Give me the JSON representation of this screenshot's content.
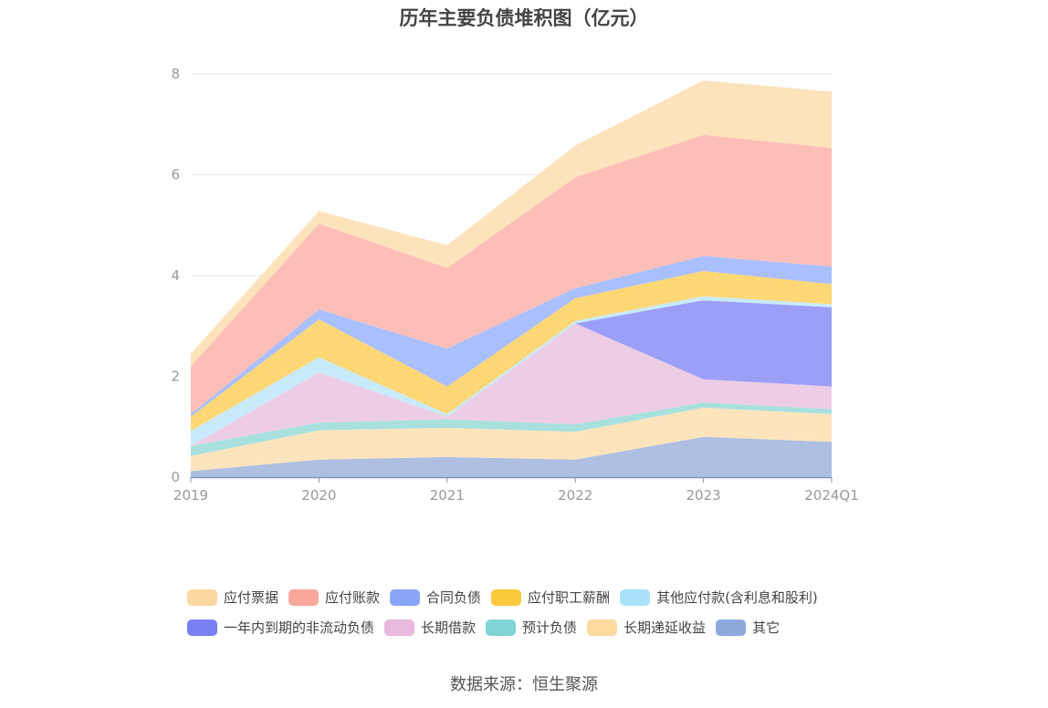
{
  "chart_data": {
    "type": "area",
    "stacked": true,
    "title": "历年主要负债堆积图（亿元）",
    "categories": [
      "2019",
      "2020",
      "2021",
      "2022",
      "2023",
      "2024Q1"
    ],
    "y_ticks": [
      "0",
      "2",
      "4",
      "6",
      "8"
    ],
    "ylim": [
      0,
      8
    ],
    "grid": true,
    "legend_position": "bottom",
    "series": [
      {
        "name": "其它",
        "color": "#aebfe1",
        "legend_color": "#8eaadc",
        "values": [
          0.12,
          0.35,
          0.4,
          0.35,
          0.8,
          0.7
        ]
      },
      {
        "name": "长期递延收益",
        "color": "#fde4bd",
        "legend_color": "#fdd9a0",
        "values": [
          0.3,
          0.58,
          0.58,
          0.55,
          0.58,
          0.55
        ]
      },
      {
        "name": "预计负债",
        "color": "#a8e0de",
        "legend_color": "#7fd5d3",
        "values": [
          0.2,
          0.15,
          0.17,
          0.15,
          0.1,
          0.1
        ]
      },
      {
        "name": "长期借款",
        "color": "#edcde6",
        "legend_color": "#e9b9de",
        "values": [
          0.0,
          1.0,
          0.05,
          2.0,
          0.46,
          0.45
        ]
      },
      {
        "name": "一年内到期的非流动负债",
        "color": "#9c9ff7",
        "legend_color": "#7880f2",
        "values": [
          0.0,
          0.0,
          0.0,
          0.0,
          1.57,
          1.57
        ]
      },
      {
        "name": "其他应付款(含利息和股利)",
        "color": "#c8ebfb",
        "legend_color": "#a9e1fb",
        "values": [
          0.3,
          0.3,
          0.05,
          0.05,
          0.08,
          0.06
        ]
      },
      {
        "name": "应付职工薪酬",
        "color": "#fed776",
        "legend_color": "#fbc93e",
        "values": [
          0.28,
          0.75,
          0.55,
          0.45,
          0.5,
          0.4
        ]
      },
      {
        "name": "合同负债",
        "color": "#aabffd",
        "legend_color": "#8aa6f8",
        "values": [
          0.05,
          0.2,
          0.75,
          0.2,
          0.3,
          0.35
        ]
      },
      {
        "name": "应付账款",
        "color": "#fdbeb7",
        "legend_color": "#f9a79b",
        "values": [
          0.95,
          1.7,
          1.6,
          2.2,
          2.4,
          2.35
        ]
      },
      {
        "name": "应付票据",
        "color": "#fde3bc",
        "legend_color": "#fdd7a0",
        "values": [
          0.25,
          0.25,
          0.45,
          0.63,
          1.08,
          1.12
        ]
      }
    ],
    "legend_rows": [
      [
        "应付票据",
        "应付账款",
        "合同负债",
        "应付职工薪酬",
        "其他应付款(含利息和股利)"
      ],
      [
        "一年内到期的非流动负债",
        "长期借款",
        "预计负债",
        "长期递延收益",
        "其它"
      ]
    ]
  },
  "source_text": "数据来源：恒生聚源"
}
